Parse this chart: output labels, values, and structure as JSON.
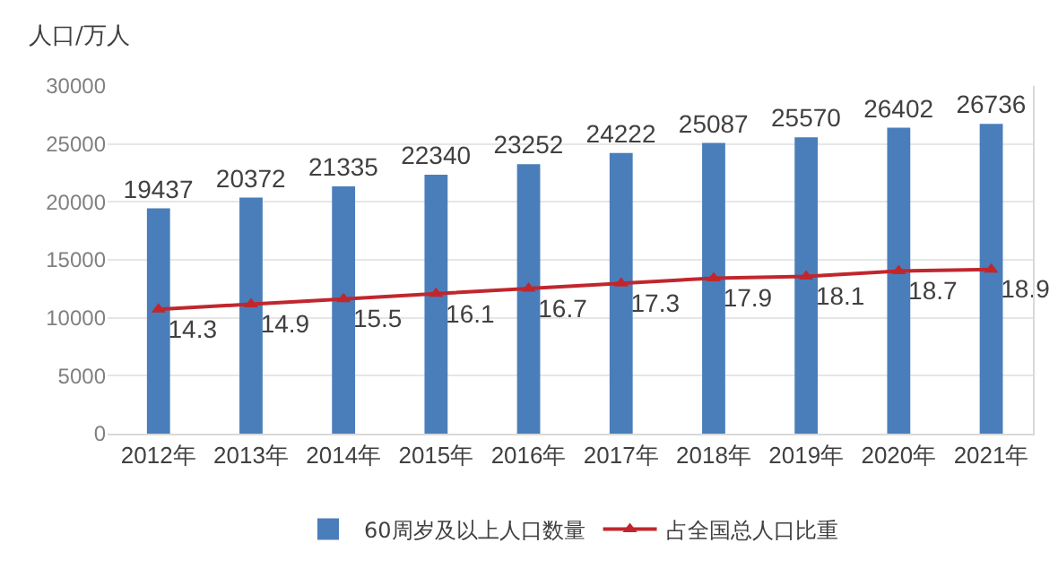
{
  "chart_data": {
    "type": "bar",
    "ylabel": "人口/万人",
    "categories": [
      "2012年",
      "2013年",
      "2014年",
      "2015年",
      "2016年",
      "2017年",
      "2018年",
      "2019年",
      "2020年",
      "2021年"
    ],
    "series": [
      {
        "name": "60周岁及以上人口数量",
        "color": "#4a7ebb",
        "values": [
          19437,
          20372,
          21335,
          22340,
          23252,
          24222,
          25087,
          25570,
          26402,
          26736
        ]
      },
      {
        "name": "占全国总人口比重",
        "type": "line",
        "axis": "y2",
        "color": "#c0272d",
        "marker": "triangle",
        "values": [
          14.3,
          14.9,
          15.5,
          16.1,
          16.7,
          17.3,
          17.9,
          18.1,
          18.7,
          18.9
        ]
      }
    ],
    "ylim": [
      0,
      30000
    ],
    "yticks": [
      0,
      5000,
      10000,
      15000,
      20000,
      25000,
      30000
    ],
    "y2lim": [
      0,
      40
    ],
    "tick_labels": "xy",
    "data_labels": true,
    "grid": "y",
    "legend": "bottom"
  }
}
